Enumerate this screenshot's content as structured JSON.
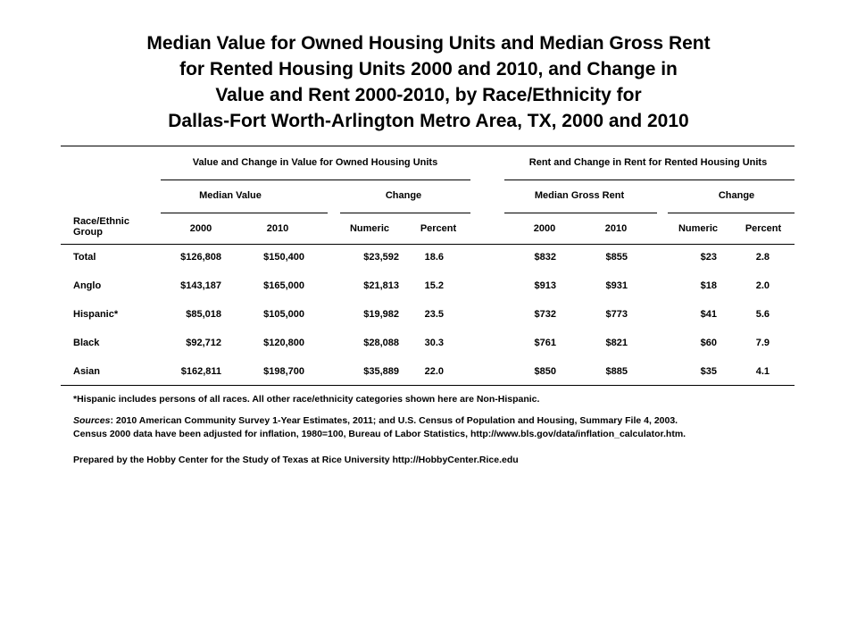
{
  "title": {
    "lines": [
      "Median Value for Owned Housing Units and Median Gross Rent",
      "for Rented Housing Units 2000 and 2010, and Change in",
      "Value and Rent 2000-2010, by Race/Ethnicity for",
      "Dallas-Fort Worth-Arlington Metro Area, TX, 2000 and 2010"
    ]
  },
  "table": {
    "row_header_label": "Race/Ethnic Group",
    "group_headers": {
      "owned": "Value and Change in Value for Owned Housing Units",
      "rented": "Rent and Change in Rent for Rented Housing Units"
    },
    "sub_headers": {
      "median_value": "Median Value",
      "change_owned": "Change",
      "median_gross_rent": "Median Gross Rent",
      "change_rented": "Change"
    },
    "columns": [
      "2000",
      "2010",
      "Numeric",
      "Percent",
      "2000",
      "2010",
      "Numeric",
      "Percent"
    ],
    "rows": [
      {
        "group": "Total",
        "cells": [
          "$126,808",
          "$150,400",
          "$23,592",
          "18.6",
          "$832",
          "$855",
          "$23",
          "2.8"
        ]
      },
      {
        "group": "Anglo",
        "cells": [
          "$143,187",
          "$165,000",
          "$21,813",
          "15.2",
          "$913",
          "$931",
          "$18",
          "2.0"
        ]
      },
      {
        "group": "Hispanic*",
        "cells": [
          "$85,018",
          "$105,000",
          "$19,982",
          "23.5",
          "$732",
          "$773",
          "$41",
          "5.6"
        ]
      },
      {
        "group": "Black",
        "cells": [
          "$92,712",
          "$120,800",
          "$28,088",
          "30.3",
          "$761",
          "$821",
          "$60",
          "7.9"
        ]
      },
      {
        "group": "Asian",
        "cells": [
          "$162,811",
          "$198,700",
          "$35,889",
          "22.0",
          "$850",
          "$885",
          "$35",
          "4.1"
        ]
      }
    ]
  },
  "notes": {
    "footnote": "*Hispanic includes persons of all races.  All other race/ethnicity categories shown here are Non-Hispanic.",
    "sources_label": "Sources",
    "sources_line1": ": 2010 American Community Survey 1-Year Estimates, 2011; and U.S. Census of Population and Housing, Summary File 4, 2003.",
    "sources_line2": "Census 2000 data have been adjusted for inflation, 1980=100, Bureau of Labor Statistics, http://www.bls.gov/data/inflation_calculator.htm.",
    "prepared_by": "Prepared by the Hobby Center for the Study of Texas at Rice University http://HobbyCenter.Rice.edu"
  }
}
